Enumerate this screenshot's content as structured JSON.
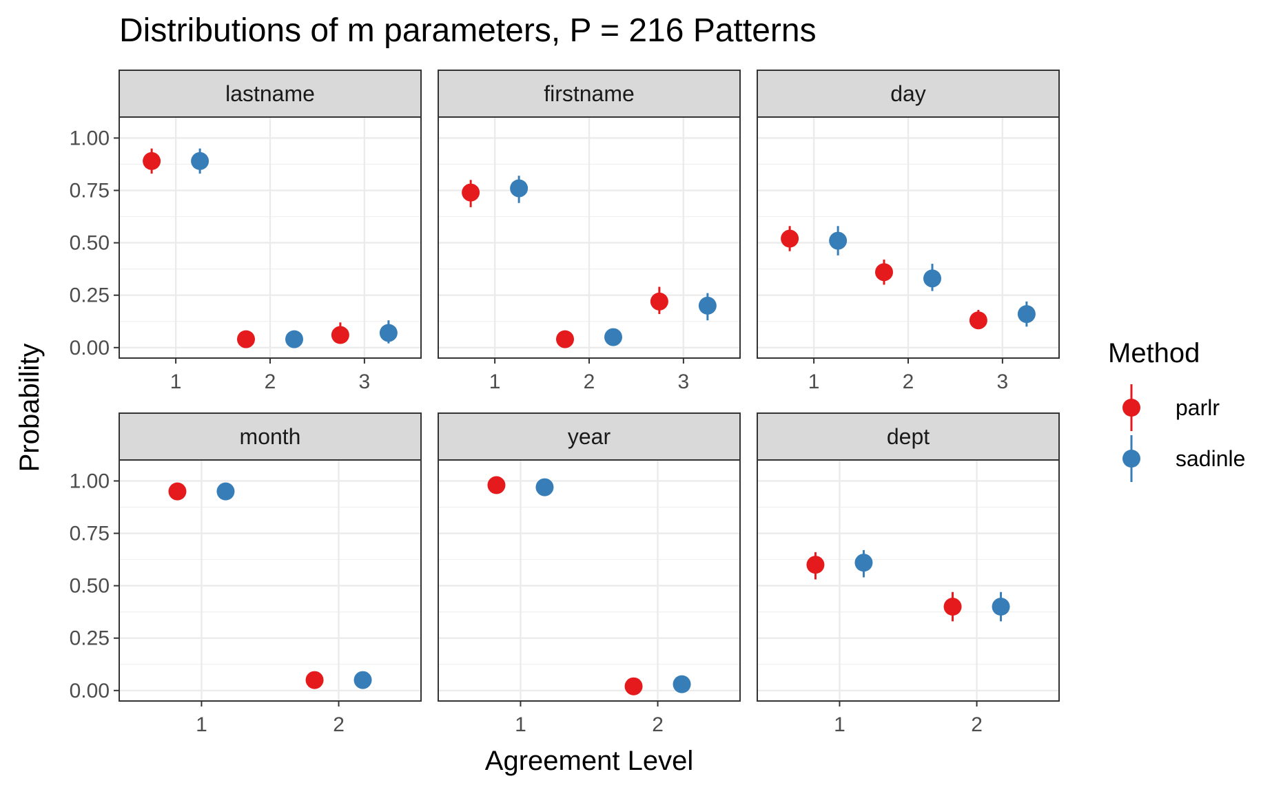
{
  "chart_data": {
    "type": "scatter",
    "title": "Distributions of m parameters, P = 216 Patterns",
    "xlabel": "Agreement Level",
    "ylabel": "Probability",
    "ylim": [
      -0.05,
      1.1
    ],
    "yticks": [
      "0.00",
      "0.25",
      "0.50",
      "0.75",
      "1.00"
    ],
    "grid": true,
    "legend": {
      "title": "Method",
      "position": "right",
      "items": [
        {
          "name": "parlr",
          "color": "#e41a1c"
        },
        {
          "name": "sadinle",
          "color": "#377eb8"
        }
      ]
    },
    "panels": [
      {
        "name": "lastname",
        "categories": [
          "1",
          "2",
          "3"
        ],
        "series": [
          {
            "name": "parlr",
            "values": [
              0.89,
              0.04,
              0.06
            ],
            "lower": [
              0.83,
              0.03,
              0.02
            ],
            "upper": [
              0.95,
              0.05,
              0.12
            ]
          },
          {
            "name": "sadinle",
            "values": [
              0.89,
              0.04,
              0.07
            ],
            "lower": [
              0.83,
              0.03,
              0.02
            ],
            "upper": [
              0.95,
              0.05,
              0.13
            ]
          }
        ]
      },
      {
        "name": "firstname",
        "categories": [
          "1",
          "2",
          "3"
        ],
        "series": [
          {
            "name": "parlr",
            "values": [
              0.74,
              0.04,
              0.22
            ],
            "lower": [
              0.67,
              0.03,
              0.16
            ],
            "upper": [
              0.8,
              0.05,
              0.29
            ]
          },
          {
            "name": "sadinle",
            "values": [
              0.76,
              0.05,
              0.2
            ],
            "lower": [
              0.69,
              0.04,
              0.13
            ],
            "upper": [
              0.82,
              0.06,
              0.26
            ]
          }
        ]
      },
      {
        "name": "day",
        "categories": [
          "1",
          "2",
          "3"
        ],
        "series": [
          {
            "name": "parlr",
            "values": [
              0.52,
              0.36,
              0.13
            ],
            "lower": [
              0.46,
              0.3,
              0.09
            ],
            "upper": [
              0.58,
              0.42,
              0.18
            ]
          },
          {
            "name": "sadinle",
            "values": [
              0.51,
              0.33,
              0.16
            ],
            "lower": [
              0.44,
              0.27,
              0.1
            ],
            "upper": [
              0.58,
              0.4,
              0.22
            ]
          }
        ]
      },
      {
        "name": "month",
        "categories": [
          "1",
          "2"
        ],
        "series": [
          {
            "name": "parlr",
            "values": [
              0.95,
              0.05
            ],
            "lower": [
              0.94,
              0.04
            ],
            "upper": [
              0.96,
              0.06
            ]
          },
          {
            "name": "sadinle",
            "values": [
              0.95,
              0.05
            ],
            "lower": [
              0.94,
              0.04
            ],
            "upper": [
              0.96,
              0.06
            ]
          }
        ]
      },
      {
        "name": "year",
        "categories": [
          "1",
          "2"
        ],
        "series": [
          {
            "name": "parlr",
            "values": [
              0.98,
              0.02
            ],
            "lower": [
              0.975,
              0.015
            ],
            "upper": [
              0.985,
              0.025
            ]
          },
          {
            "name": "sadinle",
            "values": [
              0.97,
              0.03
            ],
            "lower": [
              0.965,
              0.025
            ],
            "upper": [
              0.975,
              0.035
            ]
          }
        ]
      },
      {
        "name": "dept",
        "categories": [
          "1",
          "2"
        ],
        "series": [
          {
            "name": "parlr",
            "values": [
              0.6,
              0.4
            ],
            "lower": [
              0.53,
              0.33
            ],
            "upper": [
              0.66,
              0.47
            ]
          },
          {
            "name": "sadinle",
            "values": [
              0.61,
              0.4
            ],
            "lower": [
              0.54,
              0.33
            ],
            "upper": [
              0.67,
              0.47
            ]
          }
        ]
      }
    ]
  }
}
